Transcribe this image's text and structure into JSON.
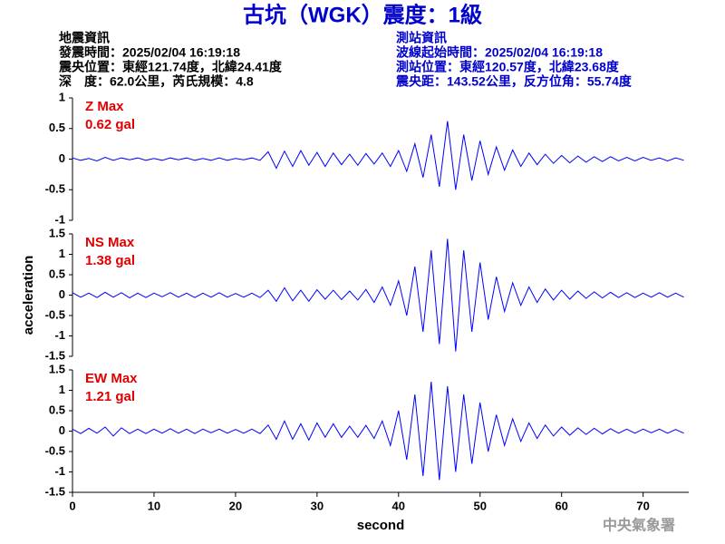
{
  "title": "古坑（WGK）震度：1級",
  "left_info": [
    "地震資訊",
    "發震時間：2025/02/04 16:19:18",
    "震央位置：東經121.74度，北緯24.41度",
    "深　度：62.0公里，芮氏規模：4.8"
  ],
  "right_info": [
    "測站資訊",
    "波線起始時間：2025/02/04 16:19:18",
    "測站位置：東經120.57度，北緯23.68度",
    "震央距：143.52公里，反方位角：55.74度"
  ],
  "watermark": "中央氣象署",
  "chart_data": [
    {
      "type": "line",
      "annotations": [
        "Z Max",
        "0.62 gal"
      ],
      "xlim": [
        0,
        75.6
      ],
      "ylim": [
        -1,
        1
      ],
      "yticks": [
        -1,
        -0.5,
        0,
        0.5,
        1
      ],
      "x": [
        0,
        1,
        2,
        3,
        4,
        5,
        6,
        7,
        8,
        9,
        10,
        11,
        12,
        13,
        14,
        15,
        16,
        17,
        18,
        19,
        20,
        21,
        22,
        23,
        24,
        25,
        26,
        27,
        28,
        29,
        30,
        31,
        32,
        33,
        34,
        35,
        36,
        37,
        38,
        39,
        40,
        41,
        42,
        43,
        44,
        45,
        46,
        47,
        48,
        49,
        50,
        51,
        52,
        53,
        54,
        55,
        56,
        57,
        58,
        59,
        60,
        61,
        62,
        63,
        64,
        65,
        66,
        67,
        68,
        69,
        70,
        71,
        72,
        73,
        74,
        75
      ],
      "series": [
        {
          "name": "Z",
          "color": "#0000ff",
          "values": [
            0.02,
            -0.02,
            0.01,
            -0.03,
            0.03,
            -0.02,
            0.02,
            -0.01,
            0.02,
            -0.02,
            0.01,
            -0.02,
            0.02,
            -0.01,
            0.02,
            -0.02,
            0.01,
            -0.02,
            0.02,
            -0.02,
            0.01,
            -0.01,
            0.02,
            -0.02,
            0.12,
            -0.15,
            0.13,
            -0.12,
            0.14,
            -0.1,
            0.11,
            -0.12,
            0.1,
            -0.09,
            0.08,
            -0.1,
            0.09,
            -0.08,
            0.1,
            -0.12,
            0.14,
            -0.2,
            0.25,
            -0.3,
            0.4,
            -0.45,
            0.62,
            -0.5,
            0.4,
            -0.35,
            0.3,
            -0.25,
            0.2,
            -0.18,
            0.15,
            -0.12,
            0.1,
            -0.09,
            0.08,
            -0.07,
            0.06,
            -0.06,
            0.05,
            -0.05,
            0.04,
            -0.04,
            0.04,
            -0.03,
            0.03,
            -0.03,
            0.03,
            -0.02,
            0.02,
            -0.03,
            0.02,
            -0.02
          ]
        }
      ]
    },
    {
      "type": "line",
      "annotations": [
        "NS Max",
        "1.38 gal"
      ],
      "ylabel": "acceleration",
      "xlim": [
        0,
        75.6
      ],
      "ylim": [
        -1.5,
        1.5
      ],
      "yticks": [
        -1.5,
        -1,
        -0.5,
        0,
        0.5,
        1,
        1.5
      ],
      "x": [
        0,
        1,
        2,
        3,
        4,
        5,
        6,
        7,
        8,
        9,
        10,
        11,
        12,
        13,
        14,
        15,
        16,
        17,
        18,
        19,
        20,
        21,
        22,
        23,
        24,
        25,
        26,
        27,
        28,
        29,
        30,
        31,
        32,
        33,
        34,
        35,
        36,
        37,
        38,
        39,
        40,
        41,
        42,
        43,
        44,
        45,
        46,
        47,
        48,
        49,
        50,
        51,
        52,
        53,
        54,
        55,
        56,
        57,
        58,
        59,
        60,
        61,
        62,
        63,
        64,
        65,
        66,
        67,
        68,
        69,
        70,
        71,
        72,
        73,
        74,
        75
      ],
      "series": [
        {
          "name": "NS",
          "color": "#0000ff",
          "values": [
            0.06,
            -0.05,
            0.05,
            -0.06,
            0.07,
            -0.05,
            0.06,
            -0.07,
            0.05,
            -0.06,
            0.05,
            -0.04,
            0.06,
            -0.05,
            0.05,
            -0.06,
            0.05,
            -0.05,
            0.06,
            -0.05,
            0.04,
            -0.05,
            0.05,
            -0.06,
            0.12,
            -0.15,
            0.18,
            -0.14,
            0.12,
            -0.15,
            0.13,
            -0.1,
            0.12,
            -0.11,
            0.1,
            -0.12,
            0.14,
            -0.18,
            0.2,
            -0.25,
            0.35,
            -0.5,
            0.7,
            -0.9,
            1.1,
            -1.2,
            1.38,
            -1.38,
            1.1,
            -0.9,
            0.8,
            -0.6,
            0.45,
            -0.4,
            0.3,
            -0.25,
            0.2,
            -0.18,
            0.15,
            -0.12,
            0.12,
            -0.1,
            0.1,
            -0.08,
            0.08,
            -0.07,
            0.07,
            -0.06,
            0.06,
            -0.06,
            0.05,
            -0.05,
            0.06,
            -0.05,
            0.05,
            -0.05
          ]
        }
      ]
    },
    {
      "type": "line",
      "annotations": [
        "EW Max",
        "1.21 gal"
      ],
      "xlabel": "second",
      "xlim": [
        0,
        75.6
      ],
      "xticks": [
        0,
        10,
        20,
        30,
        40,
        50,
        60,
        70
      ],
      "ylim": [
        -1.5,
        1.5
      ],
      "yticks": [
        -1.5,
        -1,
        -0.5,
        0,
        0.5,
        1,
        1.5
      ],
      "x": [
        0,
        1,
        2,
        3,
        4,
        5,
        6,
        7,
        8,
        9,
        10,
        11,
        12,
        13,
        14,
        15,
        16,
        17,
        18,
        19,
        20,
        21,
        22,
        23,
        24,
        25,
        26,
        27,
        28,
        29,
        30,
        31,
        32,
        33,
        34,
        35,
        36,
        37,
        38,
        39,
        40,
        41,
        42,
        43,
        44,
        45,
        46,
        47,
        48,
        49,
        50,
        51,
        52,
        53,
        54,
        55,
        56,
        57,
        58,
        59,
        60,
        61,
        62,
        63,
        64,
        65,
        66,
        67,
        68,
        69,
        70,
        71,
        72,
        73,
        74,
        75
      ],
      "series": [
        {
          "name": "EW",
          "color": "#0000ff",
          "values": [
            0.05,
            -0.06,
            0.07,
            -0.05,
            0.1,
            -0.12,
            0.08,
            -0.06,
            0.05,
            -0.06,
            0.05,
            -0.05,
            0.06,
            -0.05,
            0.05,
            -0.06,
            0.05,
            -0.04,
            0.05,
            -0.05,
            0.04,
            -0.05,
            0.05,
            -0.06,
            0.15,
            -0.2,
            0.25,
            -0.2,
            0.18,
            -0.22,
            0.2,
            -0.15,
            0.18,
            -0.15,
            0.12,
            -0.15,
            0.14,
            -0.18,
            0.25,
            -0.35,
            0.5,
            -0.7,
            0.9,
            -1.1,
            1.21,
            -1.2,
            1.1,
            -1.0,
            0.9,
            -0.8,
            0.7,
            -0.5,
            0.4,
            -0.35,
            0.3,
            -0.25,
            0.2,
            -0.18,
            0.15,
            -0.12,
            0.1,
            -0.1,
            0.08,
            -0.08,
            0.07,
            -0.07,
            0.06,
            -0.05,
            0.05,
            -0.05,
            0.05,
            -0.04,
            0.05,
            -0.05,
            0.04,
            -0.05
          ]
        }
      ]
    }
  ]
}
